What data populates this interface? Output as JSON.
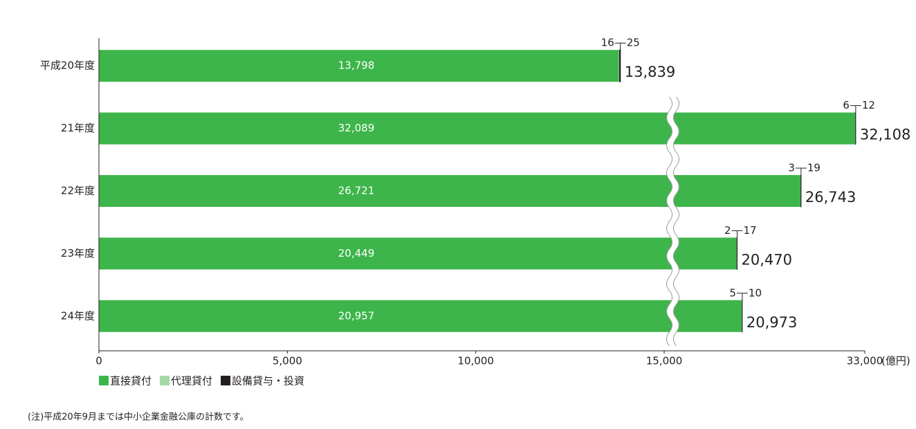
{
  "chart_data": {
    "type": "stacked-barh",
    "categories": [
      "平成20年度",
      "21年度",
      "22年度",
      "23年度",
      "24年度"
    ],
    "series": [
      {
        "name": "直接貸付",
        "color": "#3db54a",
        "values": [
          13798,
          32089,
          26721,
          20449,
          20957
        ],
        "value_labels": [
          "13,798",
          "32,089",
          "26,721",
          "20,449",
          "20,957"
        ]
      },
      {
        "name": "代理貸付",
        "color": "#a6d8a6",
        "values": [
          16,
          6,
          3,
          2,
          5
        ]
      },
      {
        "name": "設備貸与・投資",
        "color": "#231f20",
        "values": [
          25,
          12,
          19,
          17,
          10
        ]
      }
    ],
    "totals": {
      "values": [
        13839,
        32108,
        26743,
        20470,
        20973
      ],
      "value_labels": [
        "13,839",
        "32,108",
        "26,743",
        "20,470",
        "20,973"
      ]
    },
    "xlim": [
      0,
      33000
    ],
    "xbreak": 15000,
    "xticks": [
      0,
      {
        "value": 5000,
        "label": "5,000"
      },
      {
        "value": 10000,
        "label": "10,000"
      },
      {
        "value": 15000,
        "label": "15,000"
      },
      {
        "value": 33000,
        "label": "33,000"
      }
    ],
    "xlabel": "(億円)",
    "legend": "bottom-left",
    "note": "(注)平成20年9月までは中小企業金融公庫の計数です。"
  }
}
